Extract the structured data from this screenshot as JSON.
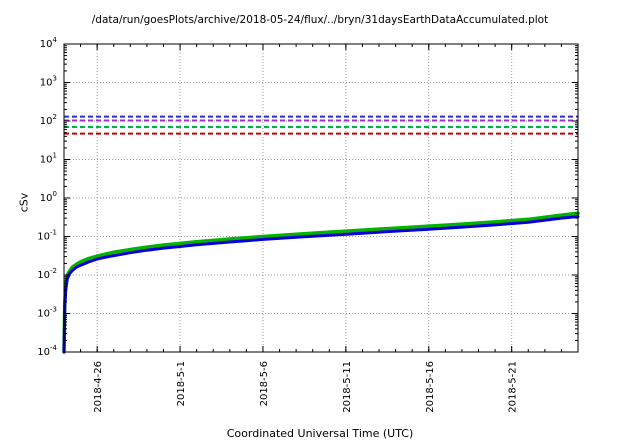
{
  "chart_data": {
    "type": "line",
    "title": "/data/run/goesPlots/archive/2018-05-24/flux/../bryn/31daysEarthDataAccumulated.plot",
    "xlabel": "Coordinated Universal Time (UTC)",
    "ylabel": "cSv",
    "y_scale": "log",
    "ylim": [
      0.0001,
      10000
    ],
    "x_range_days": [
      0,
      31
    ],
    "grid": true,
    "legend": "none",
    "x_ticks": [
      {
        "day": 2,
        "label": "2018-4-26"
      },
      {
        "day": 7,
        "label": "2018-5-1"
      },
      {
        "day": 12,
        "label": "2018-5-6"
      },
      {
        "day": 17,
        "label": "2018-5-11"
      },
      {
        "day": 22,
        "label": "2018-5-16"
      },
      {
        "day": 27,
        "label": "2018-5-21"
      }
    ],
    "y_tick_exponents": [
      -4,
      -3,
      -2,
      -1,
      0,
      1,
      2,
      3,
      4
    ],
    "limit_lines": [
      {
        "name": "blue-limit-line",
        "color": "#2a2ae0",
        "value": 130,
        "style": "dashed"
      },
      {
        "name": "purple-limit-line",
        "color": "#9933cc",
        "value": 103,
        "style": "dashed"
      },
      {
        "name": "green-limit-line",
        "color": "#00b44c",
        "value": 70,
        "style": "dashed"
      },
      {
        "name": "red-limit-line",
        "color": "#cc0000",
        "value": 47,
        "style": "dashed"
      }
    ],
    "series": [
      {
        "name": "accumulated-dose-green",
        "color": "#00b400",
        "width": 3.5,
        "x": [
          0,
          0.05,
          0.1,
          0.2,
          0.35,
          0.5,
          0.75,
          1,
          1.5,
          2,
          2.5,
          3,
          4,
          5,
          6,
          7,
          8,
          9,
          10,
          11,
          12,
          14,
          16,
          18,
          20,
          22,
          24,
          26,
          28,
          30,
          31
        ],
        "y": [
          0.0001,
          0.002,
          0.005,
          0.01,
          0.013,
          0.016,
          0.019,
          0.022,
          0.027,
          0.031,
          0.035,
          0.039,
          0.046,
          0.053,
          0.06,
          0.066,
          0.073,
          0.079,
          0.086,
          0.093,
          0.1,
          0.115,
          0.13,
          0.147,
          0.165,
          0.186,
          0.21,
          0.24,
          0.28,
          0.36,
          0.4
        ]
      },
      {
        "name": "accumulated-dose-blue",
        "color": "#0000dd",
        "width": 3,
        "x": [
          0,
          0.05,
          0.1,
          0.2,
          0.35,
          0.5,
          0.75,
          1,
          1.5,
          2,
          2.5,
          3,
          4,
          5,
          6,
          7,
          8,
          9,
          10,
          11,
          12,
          14,
          16,
          18,
          20,
          22,
          24,
          26,
          28,
          30,
          31
        ],
        "y": [
          0.0001,
          0.0015,
          0.004,
          0.008,
          0.011,
          0.013,
          0.016,
          0.018,
          0.022,
          0.026,
          0.029,
          0.032,
          0.038,
          0.044,
          0.05,
          0.055,
          0.061,
          0.066,
          0.072,
          0.078,
          0.084,
          0.096,
          0.108,
          0.122,
          0.138,
          0.155,
          0.175,
          0.2,
          0.235,
          0.3,
          0.33
        ]
      }
    ]
  }
}
